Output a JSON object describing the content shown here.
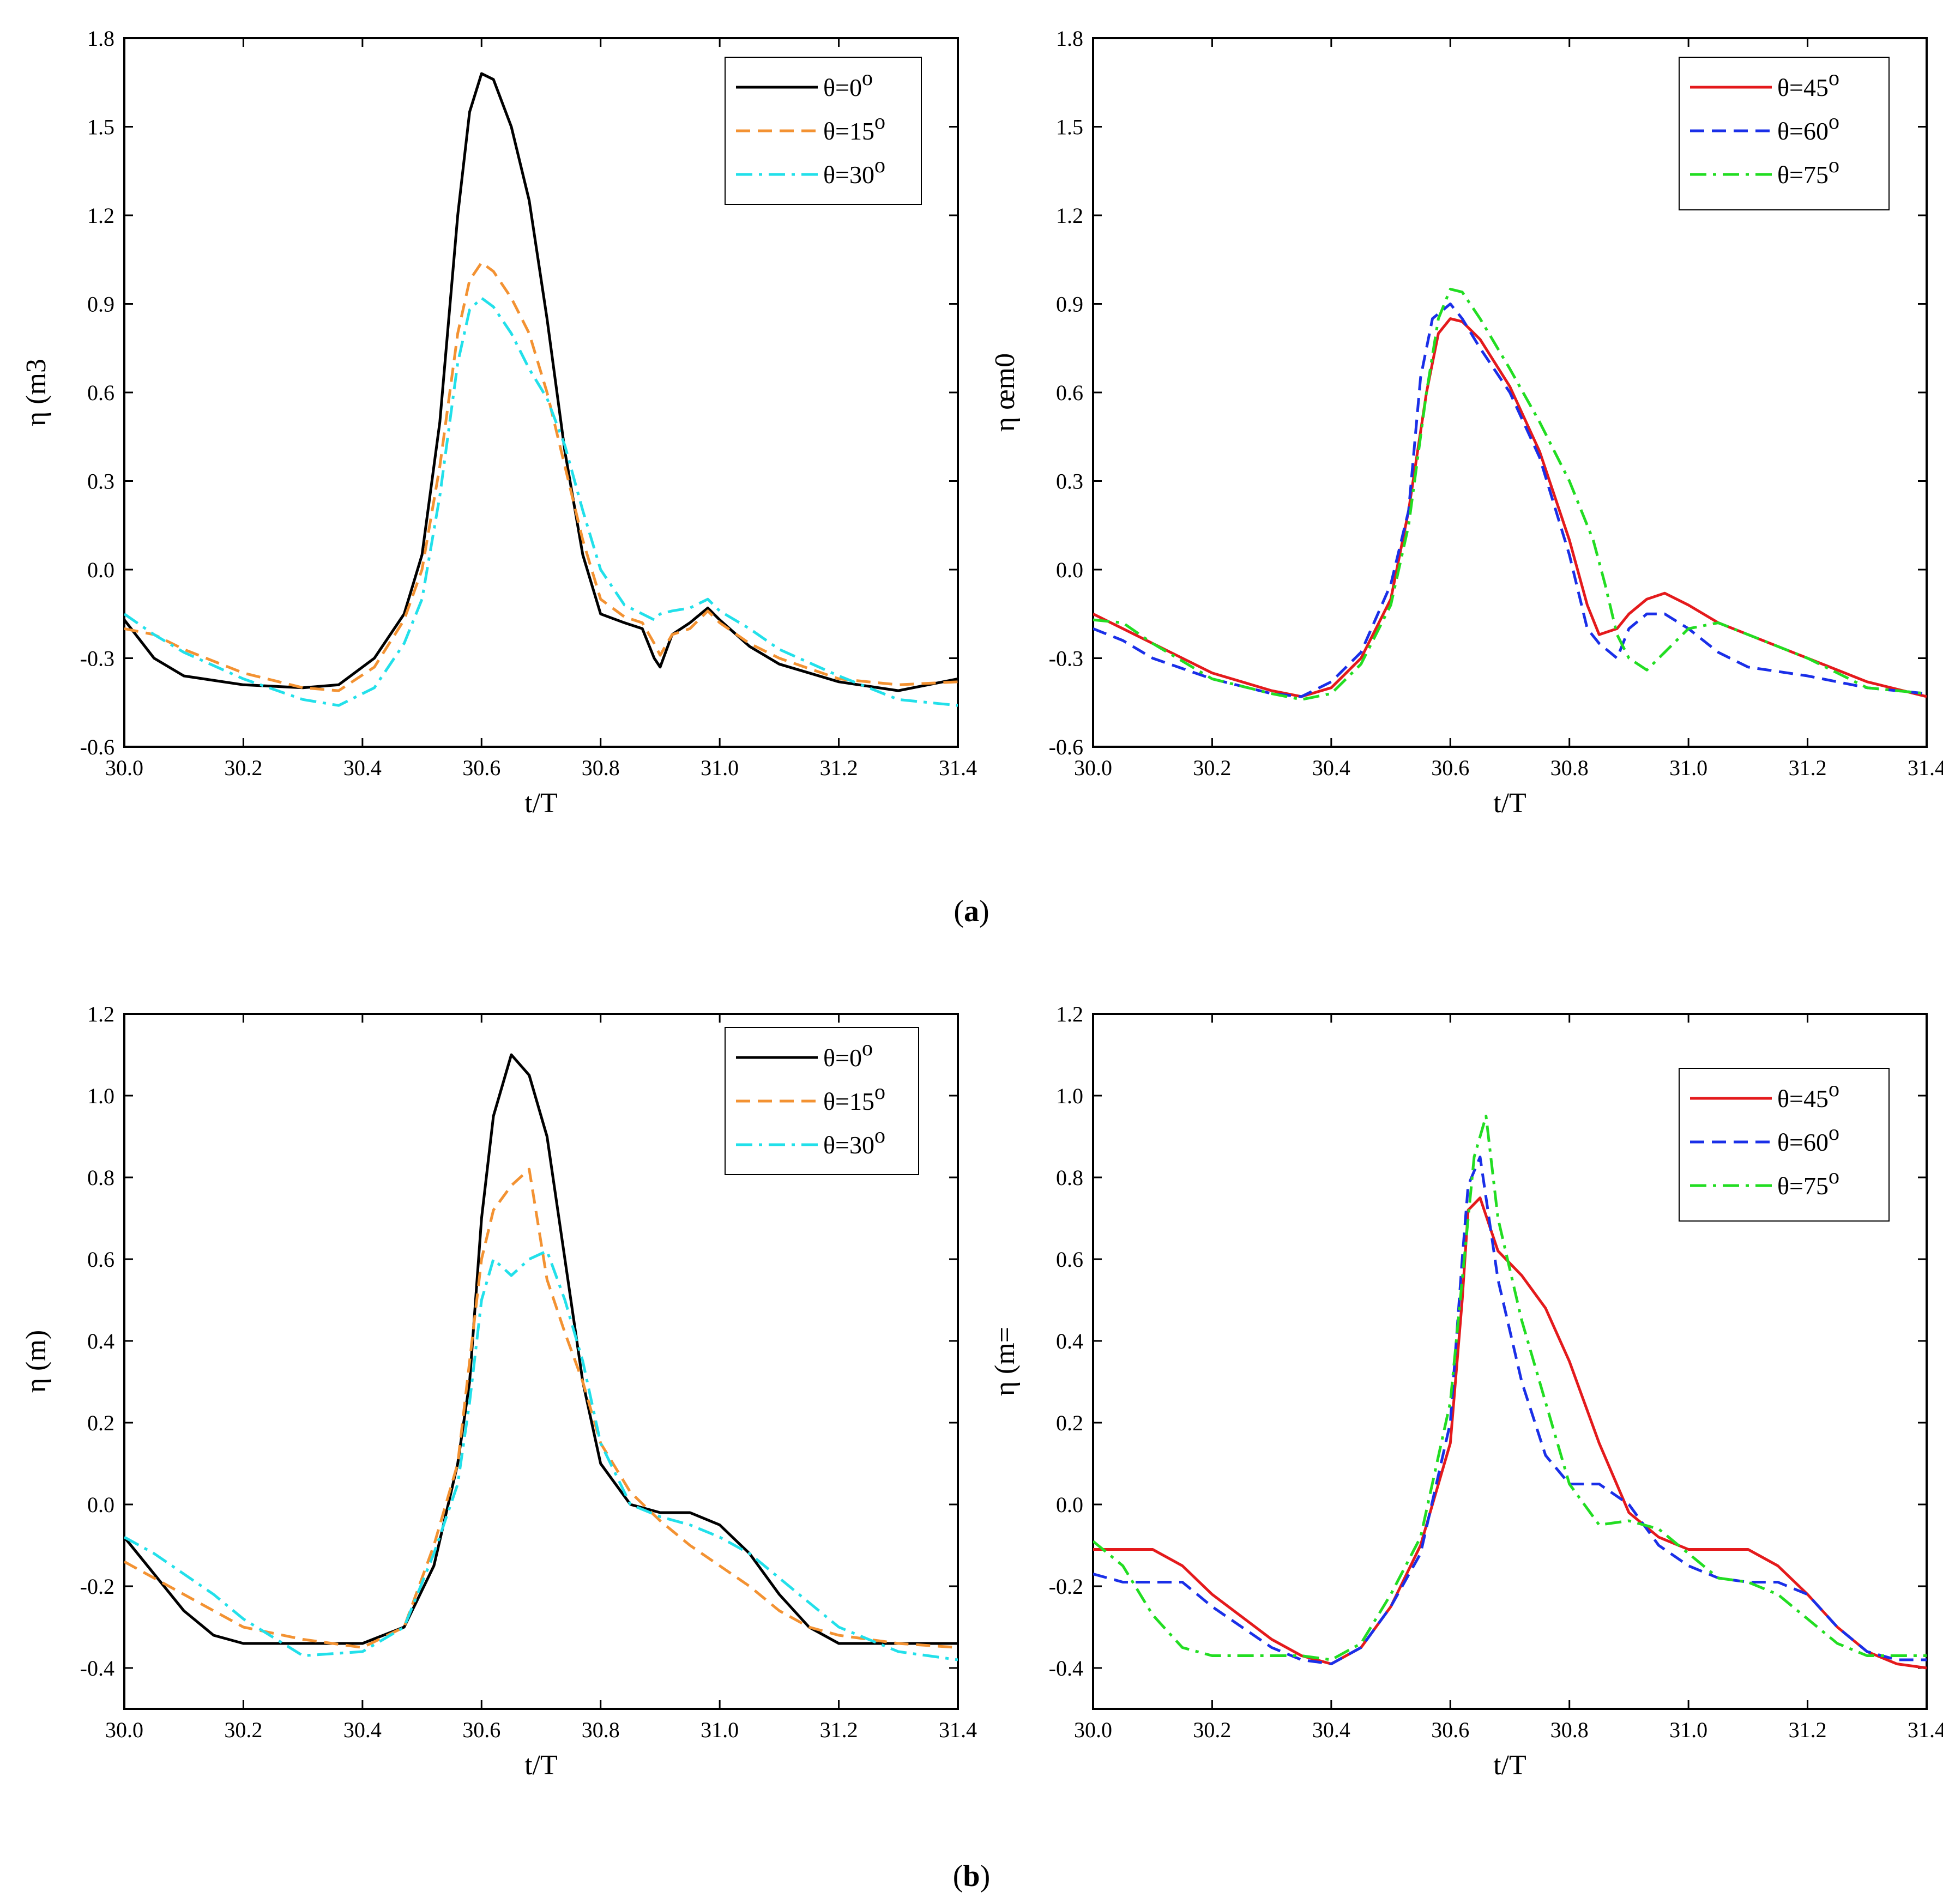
{
  "figure": {
    "caption_a": "(a)",
    "caption_a_letter": "a",
    "caption_b": "(b)",
    "caption_b_letter": "b",
    "caption_open": "(",
    "caption_close": ")"
  },
  "chart_data": [
    {
      "id": "a-left",
      "type": "line",
      "title": "",
      "xlabel": "t/T",
      "ylabel": "η (m3",
      "xlim": [
        30.0,
        31.4
      ],
      "ylim": [
        -0.6,
        1.8
      ],
      "xticks": [
        "30.0",
        "30.2",
        "30.4",
        "30.6",
        "30.8",
        "31.0",
        "31.2",
        "31.4"
      ],
      "yticks": [
        "-0.6",
        "-0.3",
        "0.0",
        "0.3",
        "0.6",
        "0.9",
        "1.2",
        "1.5",
        "1.8"
      ],
      "legend_position": "top-right",
      "series": [
        {
          "name": "θ=0",
          "sup": "o",
          "color": "#000000",
          "dash": "solid",
          "x": [
            30.0,
            30.05,
            30.1,
            30.2,
            30.3,
            30.36,
            30.42,
            30.47,
            30.5,
            30.53,
            30.56,
            30.58,
            30.6,
            30.62,
            30.65,
            30.68,
            30.71,
            30.74,
            30.77,
            30.8,
            30.84,
            30.87,
            30.89,
            30.9,
            30.92,
            30.95,
            30.98,
            31.0,
            31.05,
            31.1,
            31.2,
            31.3,
            31.4
          ],
          "y": [
            -0.17,
            -0.3,
            -0.36,
            -0.39,
            -0.4,
            -0.39,
            -0.3,
            -0.15,
            0.05,
            0.5,
            1.2,
            1.55,
            1.68,
            1.66,
            1.5,
            1.25,
            0.85,
            0.4,
            0.05,
            -0.15,
            -0.18,
            -0.2,
            -0.3,
            -0.33,
            -0.22,
            -0.18,
            -0.13,
            -0.17,
            -0.26,
            -0.32,
            -0.38,
            -0.41,
            -0.37
          ]
        },
        {
          "name": "θ=15",
          "sup": "o",
          "color": "#f39232",
          "dash": "dashed",
          "x": [
            30.0,
            30.05,
            30.1,
            30.2,
            30.3,
            30.36,
            30.42,
            30.47,
            30.5,
            30.53,
            30.56,
            30.58,
            30.6,
            30.62,
            30.65,
            30.68,
            30.71,
            30.74,
            30.77,
            30.8,
            30.84,
            30.87,
            30.89,
            30.9,
            30.92,
            30.95,
            30.98,
            31.0,
            31.05,
            31.1,
            31.2,
            31.3,
            31.4
          ],
          "y": [
            -0.2,
            -0.22,
            -0.27,
            -0.35,
            -0.4,
            -0.41,
            -0.33,
            -0.17,
            0.0,
            0.35,
            0.8,
            0.98,
            1.04,
            1.01,
            0.92,
            0.8,
            0.6,
            0.35,
            0.1,
            -0.1,
            -0.16,
            -0.18,
            -0.25,
            -0.29,
            -0.22,
            -0.2,
            -0.14,
            -0.18,
            -0.25,
            -0.3,
            -0.37,
            -0.39,
            -0.38
          ]
        },
        {
          "name": "θ=30",
          "sup": "o",
          "color": "#22e0ea",
          "dash": "dashdot",
          "x": [
            30.0,
            30.05,
            30.1,
            30.2,
            30.3,
            30.36,
            30.42,
            30.47,
            30.5,
            30.53,
            30.56,
            30.58,
            30.6,
            30.62,
            30.65,
            30.68,
            30.71,
            30.74,
            30.77,
            30.8,
            30.84,
            30.87,
            30.89,
            30.9,
            30.92,
            30.95,
            30.98,
            31.0,
            31.05,
            31.1,
            31.2,
            31.3,
            31.4
          ],
          "y": [
            -0.15,
            -0.22,
            -0.28,
            -0.37,
            -0.44,
            -0.46,
            -0.4,
            -0.25,
            -0.1,
            0.25,
            0.7,
            0.88,
            0.92,
            0.89,
            0.8,
            0.68,
            0.58,
            0.42,
            0.2,
            0.0,
            -0.12,
            -0.15,
            -0.17,
            -0.15,
            -0.14,
            -0.13,
            -0.1,
            -0.14,
            -0.2,
            -0.27,
            -0.36,
            -0.44,
            -0.46
          ]
        }
      ]
    },
    {
      "id": "a-right",
      "type": "line",
      "title": "",
      "xlabel": "t/T",
      "ylabel": "η œm0",
      "xlim": [
        30.0,
        31.4
      ],
      "ylim": [
        -0.6,
        1.8
      ],
      "xticks": [
        "30.0",
        "30.2",
        "30.4",
        "30.6",
        "30.8",
        "31.0",
        "31.2",
        "31.4"
      ],
      "yticks": [
        "-0.6",
        "-0.3",
        "0.0",
        "0.3",
        "0.6",
        "0.9",
        "1.2",
        "1.5",
        "1.8"
      ],
      "legend_position": "top-right",
      "series": [
        {
          "name": "θ=45",
          "sup": "o",
          "color": "#e41a1c",
          "dash": "solid",
          "x": [
            30.0,
            30.05,
            30.1,
            30.2,
            30.3,
            30.35,
            30.4,
            30.45,
            30.5,
            30.53,
            30.56,
            30.58,
            30.6,
            30.62,
            30.65,
            30.7,
            30.75,
            30.8,
            30.83,
            30.85,
            30.88,
            30.9,
            30.93,
            30.96,
            31.0,
            31.05,
            31.1,
            31.2,
            31.3,
            31.4
          ],
          "y": [
            -0.15,
            -0.2,
            -0.25,
            -0.35,
            -0.41,
            -0.43,
            -0.4,
            -0.3,
            -0.1,
            0.2,
            0.6,
            0.8,
            0.85,
            0.84,
            0.78,
            0.62,
            0.4,
            0.1,
            -0.12,
            -0.22,
            -0.2,
            -0.15,
            -0.1,
            -0.08,
            -0.12,
            -0.18,
            -0.22,
            -0.3,
            -0.38,
            -0.43
          ]
        },
        {
          "name": "θ=60",
          "sup": "o",
          "color": "#1a2fe8",
          "dash": "dashed",
          "x": [
            30.0,
            30.05,
            30.1,
            30.2,
            30.3,
            30.35,
            30.4,
            30.45,
            30.5,
            30.53,
            30.55,
            30.57,
            30.6,
            30.62,
            30.65,
            30.7,
            30.75,
            30.8,
            30.83,
            30.85,
            30.88,
            30.9,
            30.93,
            30.96,
            31.0,
            31.05,
            31.1,
            31.2,
            31.3,
            31.4
          ],
          "y": [
            -0.2,
            -0.24,
            -0.3,
            -0.37,
            -0.42,
            -0.43,
            -0.38,
            -0.28,
            -0.05,
            0.2,
            0.65,
            0.85,
            0.9,
            0.85,
            0.75,
            0.6,
            0.38,
            0.05,
            -0.2,
            -0.25,
            -0.3,
            -0.2,
            -0.15,
            -0.15,
            -0.2,
            -0.28,
            -0.33,
            -0.36,
            -0.4,
            -0.42
          ]
        },
        {
          "name": "θ=75",
          "sup": "o",
          "color": "#22dd22",
          "dash": "dashdot",
          "x": [
            30.0,
            30.05,
            30.1,
            30.2,
            30.3,
            30.35,
            30.4,
            30.45,
            30.5,
            30.53,
            30.56,
            30.58,
            30.6,
            30.62,
            30.65,
            30.7,
            30.75,
            30.8,
            30.84,
            30.86,
            30.88,
            30.9,
            30.93,
            30.96,
            31.0,
            31.05,
            31.1,
            31.2,
            31.3,
            31.4
          ],
          "y": [
            -0.17,
            -0.18,
            -0.25,
            -0.37,
            -0.42,
            -0.44,
            -0.42,
            -0.32,
            -0.12,
            0.15,
            0.6,
            0.85,
            0.95,
            0.94,
            0.85,
            0.68,
            0.5,
            0.3,
            0.1,
            -0.05,
            -0.22,
            -0.3,
            -0.34,
            -0.28,
            -0.2,
            -0.18,
            -0.22,
            -0.3,
            -0.4,
            -0.42
          ]
        }
      ]
    },
    {
      "id": "b-left",
      "type": "line",
      "title": "",
      "xlabel": "t/T",
      "ylabel": "η (m)",
      "xlim": [
        30.0,
        31.4
      ],
      "ylim": [
        -0.5,
        1.2
      ],
      "xticks": [
        "30.0",
        "30.2",
        "30.4",
        "30.6",
        "30.8",
        "31.0",
        "31.2",
        "31.4"
      ],
      "yticks": [
        "-0.4",
        "-0.2",
        "0.0",
        "0.2",
        "0.4",
        "0.6",
        "0.8",
        "1.0",
        "1.2"
      ],
      "ytick_values": [
        -0.4,
        -0.2,
        0.0,
        0.2,
        0.4,
        0.6,
        0.8,
        1.0,
        1.2
      ],
      "legend_position": "top-right",
      "series": [
        {
          "name": "θ=0",
          "sup": "o",
          "color": "#000000",
          "dash": "solid",
          "x": [
            30.0,
            30.05,
            30.1,
            30.15,
            30.2,
            30.3,
            30.4,
            30.47,
            30.52,
            30.56,
            30.58,
            30.6,
            30.62,
            30.65,
            30.68,
            30.71,
            30.74,
            30.77,
            30.8,
            30.85,
            30.9,
            30.95,
            31.0,
            31.05,
            31.1,
            31.15,
            31.2,
            31.3,
            31.4
          ],
          "y": [
            -0.08,
            -0.17,
            -0.26,
            -0.32,
            -0.34,
            -0.34,
            -0.34,
            -0.3,
            -0.15,
            0.1,
            0.3,
            0.7,
            0.95,
            1.1,
            1.05,
            0.9,
            0.6,
            0.3,
            0.1,
            0.0,
            -0.02,
            -0.02,
            -0.05,
            -0.12,
            -0.22,
            -0.3,
            -0.34,
            -0.34,
            -0.34
          ]
        },
        {
          "name": "θ=15",
          "sup": "o",
          "color": "#f39232",
          "dash": "dashed",
          "x": [
            30.0,
            30.05,
            30.1,
            30.15,
            30.2,
            30.3,
            30.4,
            30.47,
            30.52,
            30.56,
            30.58,
            30.6,
            30.62,
            30.65,
            30.68,
            30.71,
            30.74,
            30.77,
            30.8,
            30.85,
            30.9,
            30.95,
            31.0,
            31.05,
            31.1,
            31.15,
            31.2,
            31.3,
            31.4
          ],
          "y": [
            -0.14,
            -0.18,
            -0.22,
            -0.26,
            -0.3,
            -0.33,
            -0.35,
            -0.3,
            -0.1,
            0.1,
            0.35,
            0.6,
            0.72,
            0.78,
            0.82,
            0.55,
            0.42,
            0.3,
            0.15,
            0.03,
            -0.04,
            -0.1,
            -0.15,
            -0.2,
            -0.26,
            -0.3,
            -0.32,
            -0.34,
            -0.35
          ]
        },
        {
          "name": "θ=30",
          "sup": "o",
          "color": "#22e0ea",
          "dash": "dashdot",
          "x": [
            30.0,
            30.05,
            30.1,
            30.15,
            30.2,
            30.3,
            30.4,
            30.47,
            30.52,
            30.56,
            30.58,
            30.6,
            30.62,
            30.65,
            30.68,
            30.71,
            30.74,
            30.77,
            30.8,
            30.85,
            30.9,
            30.95,
            31.0,
            31.05,
            31.1,
            31.15,
            31.2,
            31.3,
            31.4
          ],
          "y": [
            -0.08,
            -0.12,
            -0.17,
            -0.22,
            -0.28,
            -0.37,
            -0.36,
            -0.3,
            -0.12,
            0.05,
            0.25,
            0.5,
            0.6,
            0.56,
            0.6,
            0.62,
            0.5,
            0.35,
            0.15,
            0.0,
            -0.03,
            -0.05,
            -0.08,
            -0.12,
            -0.18,
            -0.24,
            -0.3,
            -0.36,
            -0.38
          ]
        }
      ]
    },
    {
      "id": "b-right",
      "type": "line",
      "title": "",
      "xlabel": "t/T",
      "ylabel": "η (m=",
      "xlim": [
        30.0,
        31.4
      ],
      "ylim": [
        -0.5,
        1.2
      ],
      "xticks": [
        "30.0",
        "30.2",
        "30.4",
        "30.6",
        "30.8",
        "31.0",
        "31.2",
        "31.4"
      ],
      "yticks": [
        "-0.4",
        "-0.2",
        "0.0",
        "0.2",
        "0.4",
        "0.6",
        "0.8",
        "1.0",
        "1.2"
      ],
      "ytick_values": [
        -0.4,
        -0.2,
        0.0,
        0.2,
        0.4,
        0.6,
        0.8,
        1.0,
        1.2
      ],
      "legend_position": "top-right",
      "series": [
        {
          "name": "θ=45",
          "sup": "o",
          "color": "#e41a1c",
          "dash": "solid",
          "x": [
            30.0,
            30.05,
            30.1,
            30.15,
            30.2,
            30.3,
            30.35,
            30.4,
            30.45,
            30.5,
            30.55,
            30.6,
            30.62,
            30.63,
            30.65,
            30.68,
            30.72,
            30.76,
            30.8,
            30.85,
            30.9,
            30.95,
            31.0,
            31.05,
            31.1,
            31.15,
            31.2,
            31.25,
            31.3,
            31.35,
            31.4
          ],
          "y": [
            -0.11,
            -0.11,
            -0.11,
            -0.15,
            -0.22,
            -0.33,
            -0.37,
            -0.39,
            -0.35,
            -0.25,
            -0.1,
            0.15,
            0.5,
            0.72,
            0.75,
            0.62,
            0.56,
            0.48,
            0.35,
            0.15,
            -0.02,
            -0.08,
            -0.11,
            -0.11,
            -0.11,
            -0.15,
            -0.22,
            -0.3,
            -0.36,
            -0.39,
            -0.4
          ]
        },
        {
          "name": "θ=60",
          "sup": "o",
          "color": "#1a2fe8",
          "dash": "dashed",
          "x": [
            30.0,
            30.05,
            30.1,
            30.15,
            30.2,
            30.3,
            30.35,
            30.4,
            30.45,
            30.5,
            30.55,
            30.6,
            30.62,
            30.63,
            30.65,
            30.68,
            30.72,
            30.76,
            30.8,
            30.85,
            30.9,
            30.95,
            31.0,
            31.05,
            31.1,
            31.15,
            31.2,
            31.25,
            31.3,
            31.35,
            31.4
          ],
          "y": [
            -0.17,
            -0.19,
            -0.19,
            -0.19,
            -0.25,
            -0.35,
            -0.38,
            -0.39,
            -0.35,
            -0.25,
            -0.12,
            0.2,
            0.6,
            0.78,
            0.85,
            0.55,
            0.3,
            0.12,
            0.05,
            0.05,
            0.0,
            -0.1,
            -0.15,
            -0.18,
            -0.19,
            -0.19,
            -0.22,
            -0.3,
            -0.36,
            -0.38,
            -0.38
          ]
        },
        {
          "name": "θ=75",
          "sup": "o",
          "color": "#22dd22",
          "dash": "dashdot",
          "x": [
            30.0,
            30.05,
            30.1,
            30.15,
            30.2,
            30.3,
            30.35,
            30.4,
            30.45,
            30.5,
            30.55,
            30.6,
            30.62,
            30.64,
            30.66,
            30.68,
            30.72,
            30.76,
            30.8,
            30.85,
            30.9,
            30.95,
            31.0,
            31.05,
            31.1,
            31.15,
            31.2,
            31.25,
            31.3,
            31.35,
            31.4
          ],
          "y": [
            -0.09,
            -0.15,
            -0.27,
            -0.35,
            -0.37,
            -0.37,
            -0.37,
            -0.38,
            -0.34,
            -0.22,
            -0.08,
            0.25,
            0.55,
            0.85,
            0.95,
            0.7,
            0.45,
            0.25,
            0.05,
            -0.05,
            -0.04,
            -0.06,
            -0.12,
            -0.18,
            -0.19,
            -0.22,
            -0.28,
            -0.34,
            -0.37,
            -0.37,
            -0.37
          ]
        }
      ]
    }
  ]
}
